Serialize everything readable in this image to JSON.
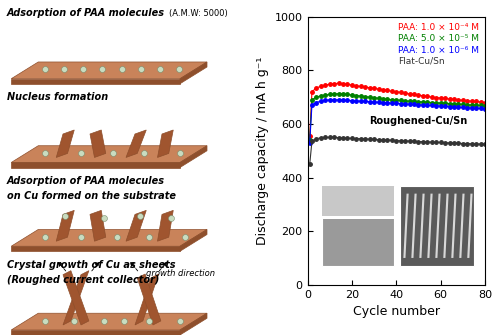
{
  "chart_data": {
    "type": "line",
    "x_label": "Cycle number",
    "y_label": "Discharge capacity / mA h g⁻¹",
    "x": [
      1,
      2,
      4,
      6,
      8,
      10,
      12,
      14,
      16,
      18,
      20,
      22,
      24,
      26,
      28,
      30,
      32,
      34,
      36,
      38,
      40,
      42,
      44,
      46,
      48,
      50,
      52,
      54,
      56,
      58,
      60,
      62,
      64,
      66,
      68,
      70,
      72,
      74,
      76,
      78,
      80
    ],
    "xlim": [
      0,
      80
    ],
    "xticks": [
      0,
      20,
      40,
      60,
      80
    ],
    "ylim": [
      0,
      1000
    ],
    "yticks": [
      0,
      200,
      400,
      600,
      800,
      1000
    ],
    "legend": "upper right",
    "marker": "circle",
    "annotations": [
      "Roughened-Cu/Sn"
    ],
    "series": [
      {
        "name": "PAA: 1.0 × 10⁻⁴ M",
        "color": "#ff0000",
        "values": [
          555,
          720,
          735,
          740,
          745,
          748,
          750,
          752,
          750,
          748,
          745,
          742,
          740,
          738,
          735,
          733,
          730,
          728,
          725,
          722,
          720,
          718,
          715,
          712,
          710,
          708,
          705,
          703,
          700,
          698,
          697,
          695,
          693,
          692,
          690,
          688,
          687,
          685,
          684,
          682,
          680
        ]
      },
      {
        "name": "PAA: 5.0 × 10⁻⁵ M",
        "color": "#008000",
        "values": [
          540,
          690,
          700,
          705,
          708,
          710,
          712,
          713,
          712,
          710,
          708,
          706,
          704,
          702,
          700,
          698,
          696,
          694,
          692,
          690,
          689,
          688,
          686,
          685,
          684,
          683,
          682,
          681,
          680,
          679,
          678,
          677,
          676,
          675,
          674,
          673,
          672,
          671,
          670,
          669,
          668
        ]
      },
      {
        "name": "PAA: 1.0 × 10⁻⁶ M",
        "color": "#0000ff",
        "values": [
          530,
          670,
          680,
          685,
          688,
          690,
          690,
          690,
          689,
          688,
          687,
          686,
          685,
          684,
          683,
          682,
          681,
          680,
          679,
          678,
          677,
          676,
          675,
          674,
          673,
          672,
          671,
          670,
          669,
          668,
          667,
          666,
          665,
          664,
          663,
          662,
          661,
          660,
          659,
          658,
          657
        ]
      },
      {
        "name": "Flat-Cu/Sn",
        "color": "#333333",
        "values": [
          450,
          535,
          545,
          548,
          550,
          550,
          550,
          549,
          548,
          547,
          546,
          545,
          545,
          544,
          543,
          542,
          541,
          540,
          540,
          539,
          538,
          537,
          537,
          536,
          535,
          534,
          534,
          533,
          532,
          531,
          531,
          530,
          529,
          529,
          528,
          527,
          527,
          526,
          525,
          525,
          524
        ]
      }
    ]
  },
  "diagram": {
    "steps": [
      {
        "lines": [
          "Adsorption of PAA molecules"
        ],
        "note": "(A.M.W: 5000)"
      },
      {
        "lines": [
          "Nucleus formation"
        ]
      },
      {
        "lines": [
          "Adsorption of PAA molecules",
          "on Cu formed on the substrate"
        ]
      },
      {
        "lines": [
          "Crystal growth of Cu as sheets",
          "(Roughed current collector)"
        ]
      }
    ],
    "arrow_label": "growth direction"
  }
}
